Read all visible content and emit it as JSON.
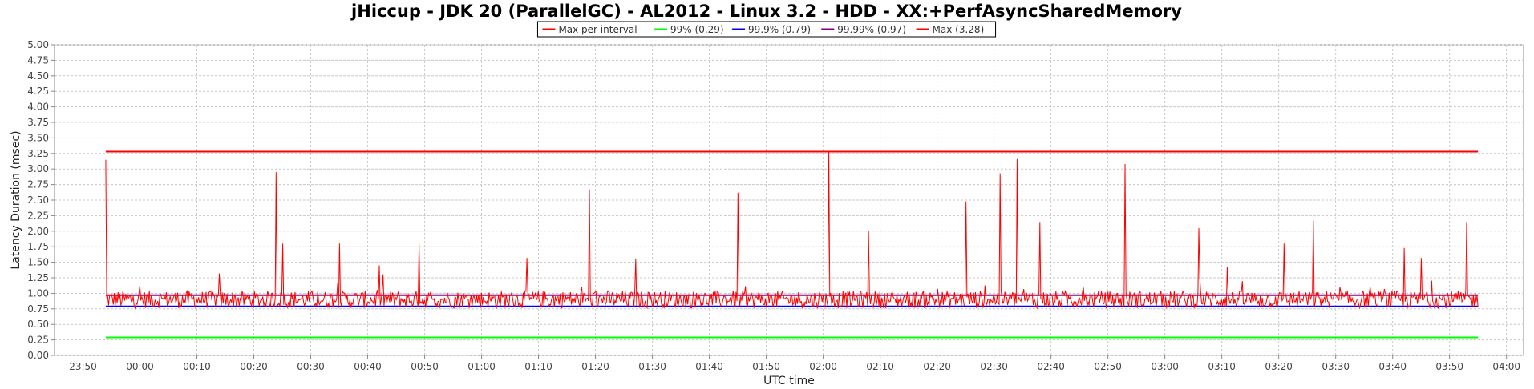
{
  "chart_data": {
    "type": "line",
    "title": "jHiccup - JDK 20 (ParallelGC) - AL2012 - Linux 3.2 - HDD - XX:+PerfAsyncSharedMemory",
    "xlabel": "UTC time",
    "ylabel": "Latency Duration (msec)",
    "ylim": [
      0,
      5
    ],
    "yticks": [
      "0.00",
      "0.25",
      "0.50",
      "0.75",
      "1.00",
      "1.25",
      "1.50",
      "1.75",
      "2.00",
      "2.25",
      "2.50",
      "2.75",
      "3.00",
      "3.25",
      "3.50",
      "3.75",
      "4.00",
      "4.25",
      "4.50",
      "4.75",
      "5.00"
    ],
    "xlim": [
      "23:45",
      "04:03"
    ],
    "xticks": [
      "23:50",
      "00:00",
      "00:10",
      "00:20",
      "00:30",
      "00:40",
      "00:50",
      "01:00",
      "01:10",
      "01:20",
      "01:30",
      "01:40",
      "01:50",
      "02:00",
      "02:10",
      "02:20",
      "02:30",
      "02:40",
      "02:50",
      "03:00",
      "03:10",
      "03:20",
      "03:30",
      "03:40",
      "03:50",
      "04:00"
    ],
    "grid": true,
    "legend": {
      "placement": "top-center",
      "entries": [
        {
          "label": "Max per interval",
          "color": "#ff0000"
        },
        {
          "label": "99% (0.29)",
          "color": "#00ff00"
        },
        {
          "label": "99.9% (0.79)",
          "color": "#0000ff"
        },
        {
          "label": "99.99% (0.97)",
          "color": "#800080"
        },
        {
          "label": "Max (3.28)",
          "color": "#ff0000"
        }
      ]
    },
    "series": [
      {
        "name": "Max per interval",
        "color": "#ff0000",
        "baseline": 0.9,
        "x_range": [
          "23:54",
          "03:55"
        ],
        "peaks": [
          {
            "x": "23:54",
            "y": 3.15
          },
          {
            "x": "00:14",
            "y": 1.32
          },
          {
            "x": "00:24",
            "y": 2.95
          },
          {
            "x": "00:25",
            "y": 1.8
          },
          {
            "x": "00:35",
            "y": 1.8
          },
          {
            "x": "00:42",
            "y": 1.45
          },
          {
            "x": "00:49",
            "y": 1.8
          },
          {
            "x": "01:08",
            "y": 1.57
          },
          {
            "x": "01:19",
            "y": 2.67
          },
          {
            "x": "01:27",
            "y": 1.55
          },
          {
            "x": "01:45",
            "y": 2.62
          },
          {
            "x": "02:01",
            "y": 3.28
          },
          {
            "x": "02:08",
            "y": 2.0
          },
          {
            "x": "02:25",
            "y": 2.48
          },
          {
            "x": "02:31",
            "y": 2.93
          },
          {
            "x": "02:34",
            "y": 3.16
          },
          {
            "x": "02:38",
            "y": 2.15
          },
          {
            "x": "02:53",
            "y": 3.08
          },
          {
            "x": "03:06",
            "y": 2.05
          },
          {
            "x": "03:11",
            "y": 1.42
          },
          {
            "x": "03:21",
            "y": 1.8
          },
          {
            "x": "03:26",
            "y": 2.17
          },
          {
            "x": "03:42",
            "y": 1.73
          },
          {
            "x": "03:45",
            "y": 1.57
          },
          {
            "x": "03:53",
            "y": 2.15
          }
        ]
      },
      {
        "name": "99% (0.29)",
        "color": "#00ff00",
        "constant": 0.29,
        "x_range": [
          "23:54",
          "03:55"
        ]
      },
      {
        "name": "99.9% (0.79)",
        "color": "#0000ff",
        "constant": 0.79,
        "x_range": [
          "23:54",
          "03:55"
        ]
      },
      {
        "name": "99.99% (0.97)",
        "color": "#800080",
        "constant": 0.97,
        "x_range": [
          "23:54",
          "03:55"
        ]
      },
      {
        "name": "Max (3.28)",
        "color": "#ff0000",
        "constant": 3.28,
        "x_range": [
          "23:54",
          "03:55"
        ]
      }
    ]
  }
}
